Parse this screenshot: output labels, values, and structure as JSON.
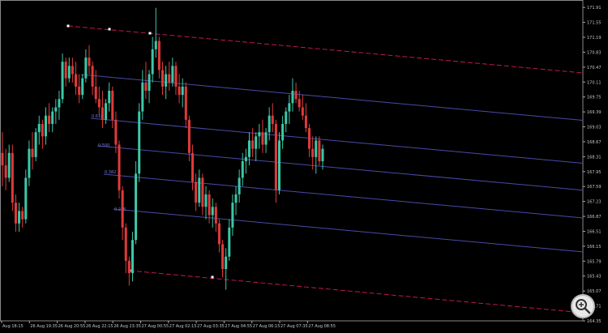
{
  "chart_data": {
    "type": "candlestick",
    "ylim": [
      164.35,
      172.05
    ],
    "y_ticks": [
      "171.91",
      "171.55",
      "171.19",
      "170.83",
      "170.47",
      "170.11",
      "169.75",
      "169.39",
      "169.03",
      "168.67",
      "168.31",
      "167.95",
      "167.59",
      "167.23",
      "166.87",
      "166.51",
      "166.15",
      "165.79",
      "165.43",
      "165.07",
      "164.71",
      "164.35"
    ],
    "x_tick_labels": [
      "Aug 18:15",
      "26 Aug 19:35",
      "26 Aug 20:55",
      "26 Aug 22:15",
      "26 Aug 23:35",
      "27 Aug 00:55",
      "27 Aug 02:15",
      "27 Aug 03:35",
      "27 Aug 04:55",
      "27 Aug 06:15",
      "27 Aug 07:35",
      "27 Aug 08:55"
    ],
    "fib_labels": [
      "0.618",
      "0.500",
      "0.382",
      "0.236"
    ],
    "candles": [
      {
        "o": 168.4,
        "h": 168.9,
        "l": 167.6,
        "c": 168.1
      },
      {
        "o": 168.1,
        "h": 168.5,
        "l": 167.5,
        "c": 167.8
      },
      {
        "o": 167.8,
        "h": 168.6,
        "l": 167.7,
        "c": 168.4
      },
      {
        "o": 168.4,
        "h": 168.6,
        "l": 167.0,
        "c": 167.2
      },
      {
        "o": 167.2,
        "h": 167.4,
        "l": 166.5,
        "c": 166.7
      },
      {
        "o": 166.7,
        "h": 167.2,
        "l": 166.5,
        "c": 167.0
      },
      {
        "o": 167.0,
        "h": 167.1,
        "l": 166.6,
        "c": 166.8
      },
      {
        "o": 166.8,
        "h": 168.0,
        "l": 166.7,
        "c": 167.8
      },
      {
        "o": 167.8,
        "h": 168.7,
        "l": 167.6,
        "c": 168.5
      },
      {
        "o": 168.5,
        "h": 168.9,
        "l": 168.0,
        "c": 168.3
      },
      {
        "o": 168.3,
        "h": 169.0,
        "l": 168.2,
        "c": 168.9
      },
      {
        "o": 168.9,
        "h": 169.3,
        "l": 168.6,
        "c": 169.1
      },
      {
        "o": 169.1,
        "h": 169.2,
        "l": 168.5,
        "c": 168.8
      },
      {
        "o": 168.8,
        "h": 169.5,
        "l": 168.6,
        "c": 169.3
      },
      {
        "o": 169.3,
        "h": 169.6,
        "l": 168.9,
        "c": 169.1
      },
      {
        "o": 169.1,
        "h": 169.5,
        "l": 168.9,
        "c": 169.4
      },
      {
        "o": 169.4,
        "h": 169.7,
        "l": 169.1,
        "c": 169.5
      },
      {
        "o": 169.5,
        "h": 169.9,
        "l": 169.2,
        "c": 169.7
      },
      {
        "o": 169.7,
        "h": 170.8,
        "l": 169.6,
        "c": 170.6
      },
      {
        "o": 170.6,
        "h": 170.7,
        "l": 170.0,
        "c": 170.2
      },
      {
        "o": 170.2,
        "h": 170.7,
        "l": 170.1,
        "c": 170.5
      },
      {
        "o": 170.5,
        "h": 170.7,
        "l": 170.1,
        "c": 170.3
      },
      {
        "o": 170.3,
        "h": 170.6,
        "l": 169.8,
        "c": 170.0
      },
      {
        "o": 170.0,
        "h": 170.3,
        "l": 169.6,
        "c": 169.8
      },
      {
        "o": 169.8,
        "h": 170.3,
        "l": 169.7,
        "c": 170.2
      },
      {
        "o": 170.2,
        "h": 170.9,
        "l": 170.1,
        "c": 170.7
      },
      {
        "o": 170.7,
        "h": 171.0,
        "l": 170.3,
        "c": 170.5
      },
      {
        "o": 170.5,
        "h": 170.6,
        "l": 169.8,
        "c": 170.0
      },
      {
        "o": 170.0,
        "h": 170.4,
        "l": 169.6,
        "c": 169.7
      },
      {
        "o": 169.7,
        "h": 170.0,
        "l": 169.3,
        "c": 169.5
      },
      {
        "o": 169.5,
        "h": 169.9,
        "l": 169.0,
        "c": 169.2
      },
      {
        "o": 169.2,
        "h": 169.7,
        "l": 169.1,
        "c": 169.6
      },
      {
        "o": 169.6,
        "h": 170.1,
        "l": 169.4,
        "c": 169.9
      },
      {
        "o": 169.9,
        "h": 170.0,
        "l": 169.0,
        "c": 169.2
      },
      {
        "o": 169.2,
        "h": 169.4,
        "l": 168.4,
        "c": 168.6
      },
      {
        "o": 168.6,
        "h": 168.7,
        "l": 167.3,
        "c": 167.5
      },
      {
        "o": 167.5,
        "h": 167.6,
        "l": 166.3,
        "c": 166.6
      },
      {
        "o": 166.6,
        "h": 166.7,
        "l": 165.5,
        "c": 165.8
      },
      {
        "o": 165.8,
        "h": 165.9,
        "l": 165.2,
        "c": 165.5
      },
      {
        "o": 165.5,
        "h": 166.5,
        "l": 165.3,
        "c": 166.3
      },
      {
        "o": 166.3,
        "h": 168.2,
        "l": 166.2,
        "c": 167.9
      },
      {
        "o": 167.9,
        "h": 169.6,
        "l": 167.7,
        "c": 169.4
      },
      {
        "o": 169.4,
        "h": 170.4,
        "l": 169.2,
        "c": 170.1
      },
      {
        "o": 170.1,
        "h": 170.6,
        "l": 169.7,
        "c": 169.9
      },
      {
        "o": 169.9,
        "h": 170.4,
        "l": 169.6,
        "c": 170.3
      },
      {
        "o": 170.3,
        "h": 171.2,
        "l": 170.1,
        "c": 170.9
      },
      {
        "o": 170.9,
        "h": 171.9,
        "l": 170.7,
        "c": 171.1
      },
      {
        "o": 171.1,
        "h": 171.2,
        "l": 170.2,
        "c": 170.4
      },
      {
        "o": 170.4,
        "h": 170.6,
        "l": 169.8,
        "c": 170.0
      },
      {
        "o": 170.0,
        "h": 170.5,
        "l": 169.7,
        "c": 170.3
      },
      {
        "o": 170.3,
        "h": 170.6,
        "l": 169.9,
        "c": 170.1
      },
      {
        "o": 170.1,
        "h": 170.7,
        "l": 170.0,
        "c": 170.5
      },
      {
        "o": 170.5,
        "h": 170.6,
        "l": 169.8,
        "c": 170.0
      },
      {
        "o": 170.0,
        "h": 170.3,
        "l": 169.6,
        "c": 169.8
      },
      {
        "o": 169.8,
        "h": 170.2,
        "l": 169.5,
        "c": 170.0
      },
      {
        "o": 170.0,
        "h": 170.1,
        "l": 169.0,
        "c": 169.2
      },
      {
        "o": 169.2,
        "h": 169.3,
        "l": 168.2,
        "c": 168.4
      },
      {
        "o": 168.4,
        "h": 168.6,
        "l": 167.5,
        "c": 167.7
      },
      {
        "o": 167.7,
        "h": 167.9,
        "l": 167.0,
        "c": 167.2
      },
      {
        "o": 167.2,
        "h": 168.0,
        "l": 167.1,
        "c": 167.8
      },
      {
        "o": 167.8,
        "h": 167.9,
        "l": 166.9,
        "c": 167.1
      },
      {
        "o": 167.1,
        "h": 167.6,
        "l": 166.8,
        "c": 167.4
      },
      {
        "o": 167.4,
        "h": 167.5,
        "l": 166.7,
        "c": 166.9
      },
      {
        "o": 166.9,
        "h": 167.3,
        "l": 166.6,
        "c": 167.1
      },
      {
        "o": 167.1,
        "h": 167.2,
        "l": 166.5,
        "c": 166.7
      },
      {
        "o": 166.7,
        "h": 166.8,
        "l": 166.0,
        "c": 166.2
      },
      {
        "o": 166.2,
        "h": 166.3,
        "l": 165.4,
        "c": 165.6
      },
      {
        "o": 165.6,
        "h": 166.1,
        "l": 165.1,
        "c": 165.9
      },
      {
        "o": 165.9,
        "h": 166.8,
        "l": 165.8,
        "c": 166.6
      },
      {
        "o": 166.6,
        "h": 167.4,
        "l": 166.4,
        "c": 167.2
      },
      {
        "o": 167.2,
        "h": 167.6,
        "l": 166.9,
        "c": 167.4
      },
      {
        "o": 167.4,
        "h": 168.0,
        "l": 167.2,
        "c": 167.8
      },
      {
        "o": 167.8,
        "h": 168.4,
        "l": 167.6,
        "c": 168.2
      },
      {
        "o": 168.2,
        "h": 168.5,
        "l": 167.9,
        "c": 168.3
      },
      {
        "o": 168.3,
        "h": 168.9,
        "l": 168.1,
        "c": 168.7
      },
      {
        "o": 168.7,
        "h": 169.0,
        "l": 168.3,
        "c": 168.5
      },
      {
        "o": 168.5,
        "h": 168.9,
        "l": 168.2,
        "c": 168.8
      },
      {
        "o": 168.8,
        "h": 169.1,
        "l": 168.5,
        "c": 168.9
      },
      {
        "o": 168.9,
        "h": 169.2,
        "l": 168.4,
        "c": 168.6
      },
      {
        "o": 168.6,
        "h": 169.0,
        "l": 168.4,
        "c": 168.9
      },
      {
        "o": 168.9,
        "h": 169.5,
        "l": 168.7,
        "c": 169.3
      },
      {
        "o": 169.3,
        "h": 169.6,
        "l": 168.9,
        "c": 169.1
      },
      {
        "o": 169.1,
        "h": 169.2,
        "l": 167.2,
        "c": 167.5
      },
      {
        "o": 167.5,
        "h": 168.9,
        "l": 167.4,
        "c": 168.7
      },
      {
        "o": 168.7,
        "h": 169.3,
        "l": 168.5,
        "c": 169.1
      },
      {
        "o": 169.1,
        "h": 169.5,
        "l": 168.9,
        "c": 169.4
      },
      {
        "o": 169.4,
        "h": 169.8,
        "l": 169.1,
        "c": 169.6
      },
      {
        "o": 169.6,
        "h": 170.2,
        "l": 169.4,
        "c": 169.9
      },
      {
        "o": 169.9,
        "h": 170.1,
        "l": 169.6,
        "c": 169.7
      },
      {
        "o": 169.7,
        "h": 169.9,
        "l": 169.4,
        "c": 169.5
      },
      {
        "o": 169.5,
        "h": 169.8,
        "l": 169.2,
        "c": 169.3
      },
      {
        "o": 169.3,
        "h": 169.6,
        "l": 168.9,
        "c": 169.0
      },
      {
        "o": 169.0,
        "h": 169.1,
        "l": 168.3,
        "c": 168.5
      },
      {
        "o": 168.5,
        "h": 168.8,
        "l": 168.0,
        "c": 168.3
      },
      {
        "o": 168.3,
        "h": 168.8,
        "l": 167.9,
        "c": 168.7
      },
      {
        "o": 168.7,
        "h": 168.8,
        "l": 168.1,
        "c": 168.2
      },
      {
        "o": 168.2,
        "h": 168.6,
        "l": 168.0,
        "c": 168.5
      }
    ]
  },
  "colors": {
    "bull": "#3cc8a8",
    "bear": "#e03a3a",
    "axis_text": "#c8c8c8",
    "channel_line": "#c0185a",
    "fib_line": "#4a4aaa",
    "fib_label": "#7878d0"
  },
  "ui": {
    "zoom_icon": "magnifier-plus-icon"
  }
}
